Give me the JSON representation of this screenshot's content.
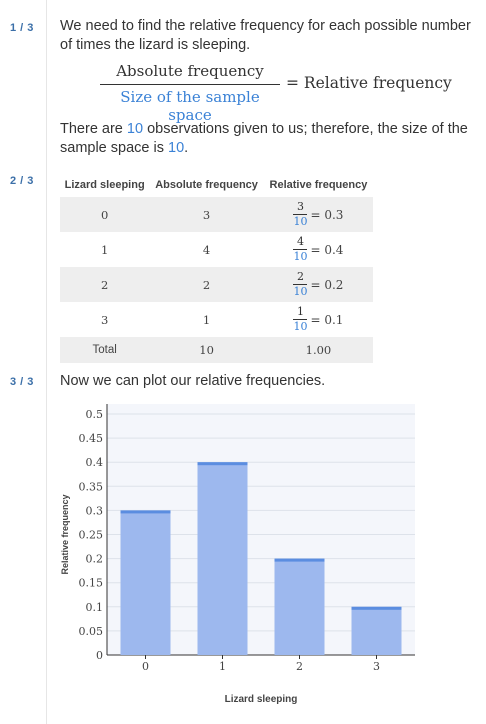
{
  "steps": [
    {
      "num": "1 / 3",
      "intro": "We need to find the relative frequency for each possible number of times the lizard is sleeping.",
      "formula": {
        "numerator": "Absolute frequency",
        "denominator": "Size of the sample space",
        "equals": "= Relative frequency"
      },
      "obs_pre": "There are ",
      "obs_n": "10",
      "obs_mid": " observations given to us; therefore, the size of the sample space is ",
      "obs_n2": "10",
      "obs_end": "."
    },
    {
      "num": "2 / 3"
    },
    {
      "num": "3 / 3",
      "text": "Now we can plot our relative frequencies."
    }
  ],
  "table": {
    "headers": [
      "Lizard sleeping",
      "Absolute frequency",
      "Relative frequency"
    ],
    "rows": [
      {
        "value": "0",
        "abs": "3",
        "num": "3",
        "den": "10",
        "rel": "= 0.3"
      },
      {
        "value": "1",
        "abs": "4",
        "num": "4",
        "den": "10",
        "rel": "= 0.4"
      },
      {
        "value": "2",
        "abs": "2",
        "num": "2",
        "den": "10",
        "rel": "= 0.2"
      },
      {
        "value": "3",
        "abs": "1",
        "num": "1",
        "den": "10",
        "rel": "= 0.1"
      }
    ],
    "total": {
      "label": "Total",
      "abs": "10",
      "rel": "1.00"
    }
  },
  "chart_data": {
    "type": "bar",
    "categories": [
      "0",
      "1",
      "2",
      "3"
    ],
    "values": [
      0.3,
      0.4,
      0.2,
      0.1
    ],
    "xlabel": "Lizard sleeping",
    "ylabel": "Relative frequency",
    "ylim": [
      0,
      0.5
    ],
    "yticks": [
      "0",
      "0.05",
      "0.1",
      "0.15",
      "0.2",
      "0.25",
      "0.3",
      "0.35",
      "0.4",
      "0.45",
      "0.5"
    ],
    "grid": true,
    "bar_color": "#9db8ee",
    "bar_top_color": "#5b8de0"
  }
}
